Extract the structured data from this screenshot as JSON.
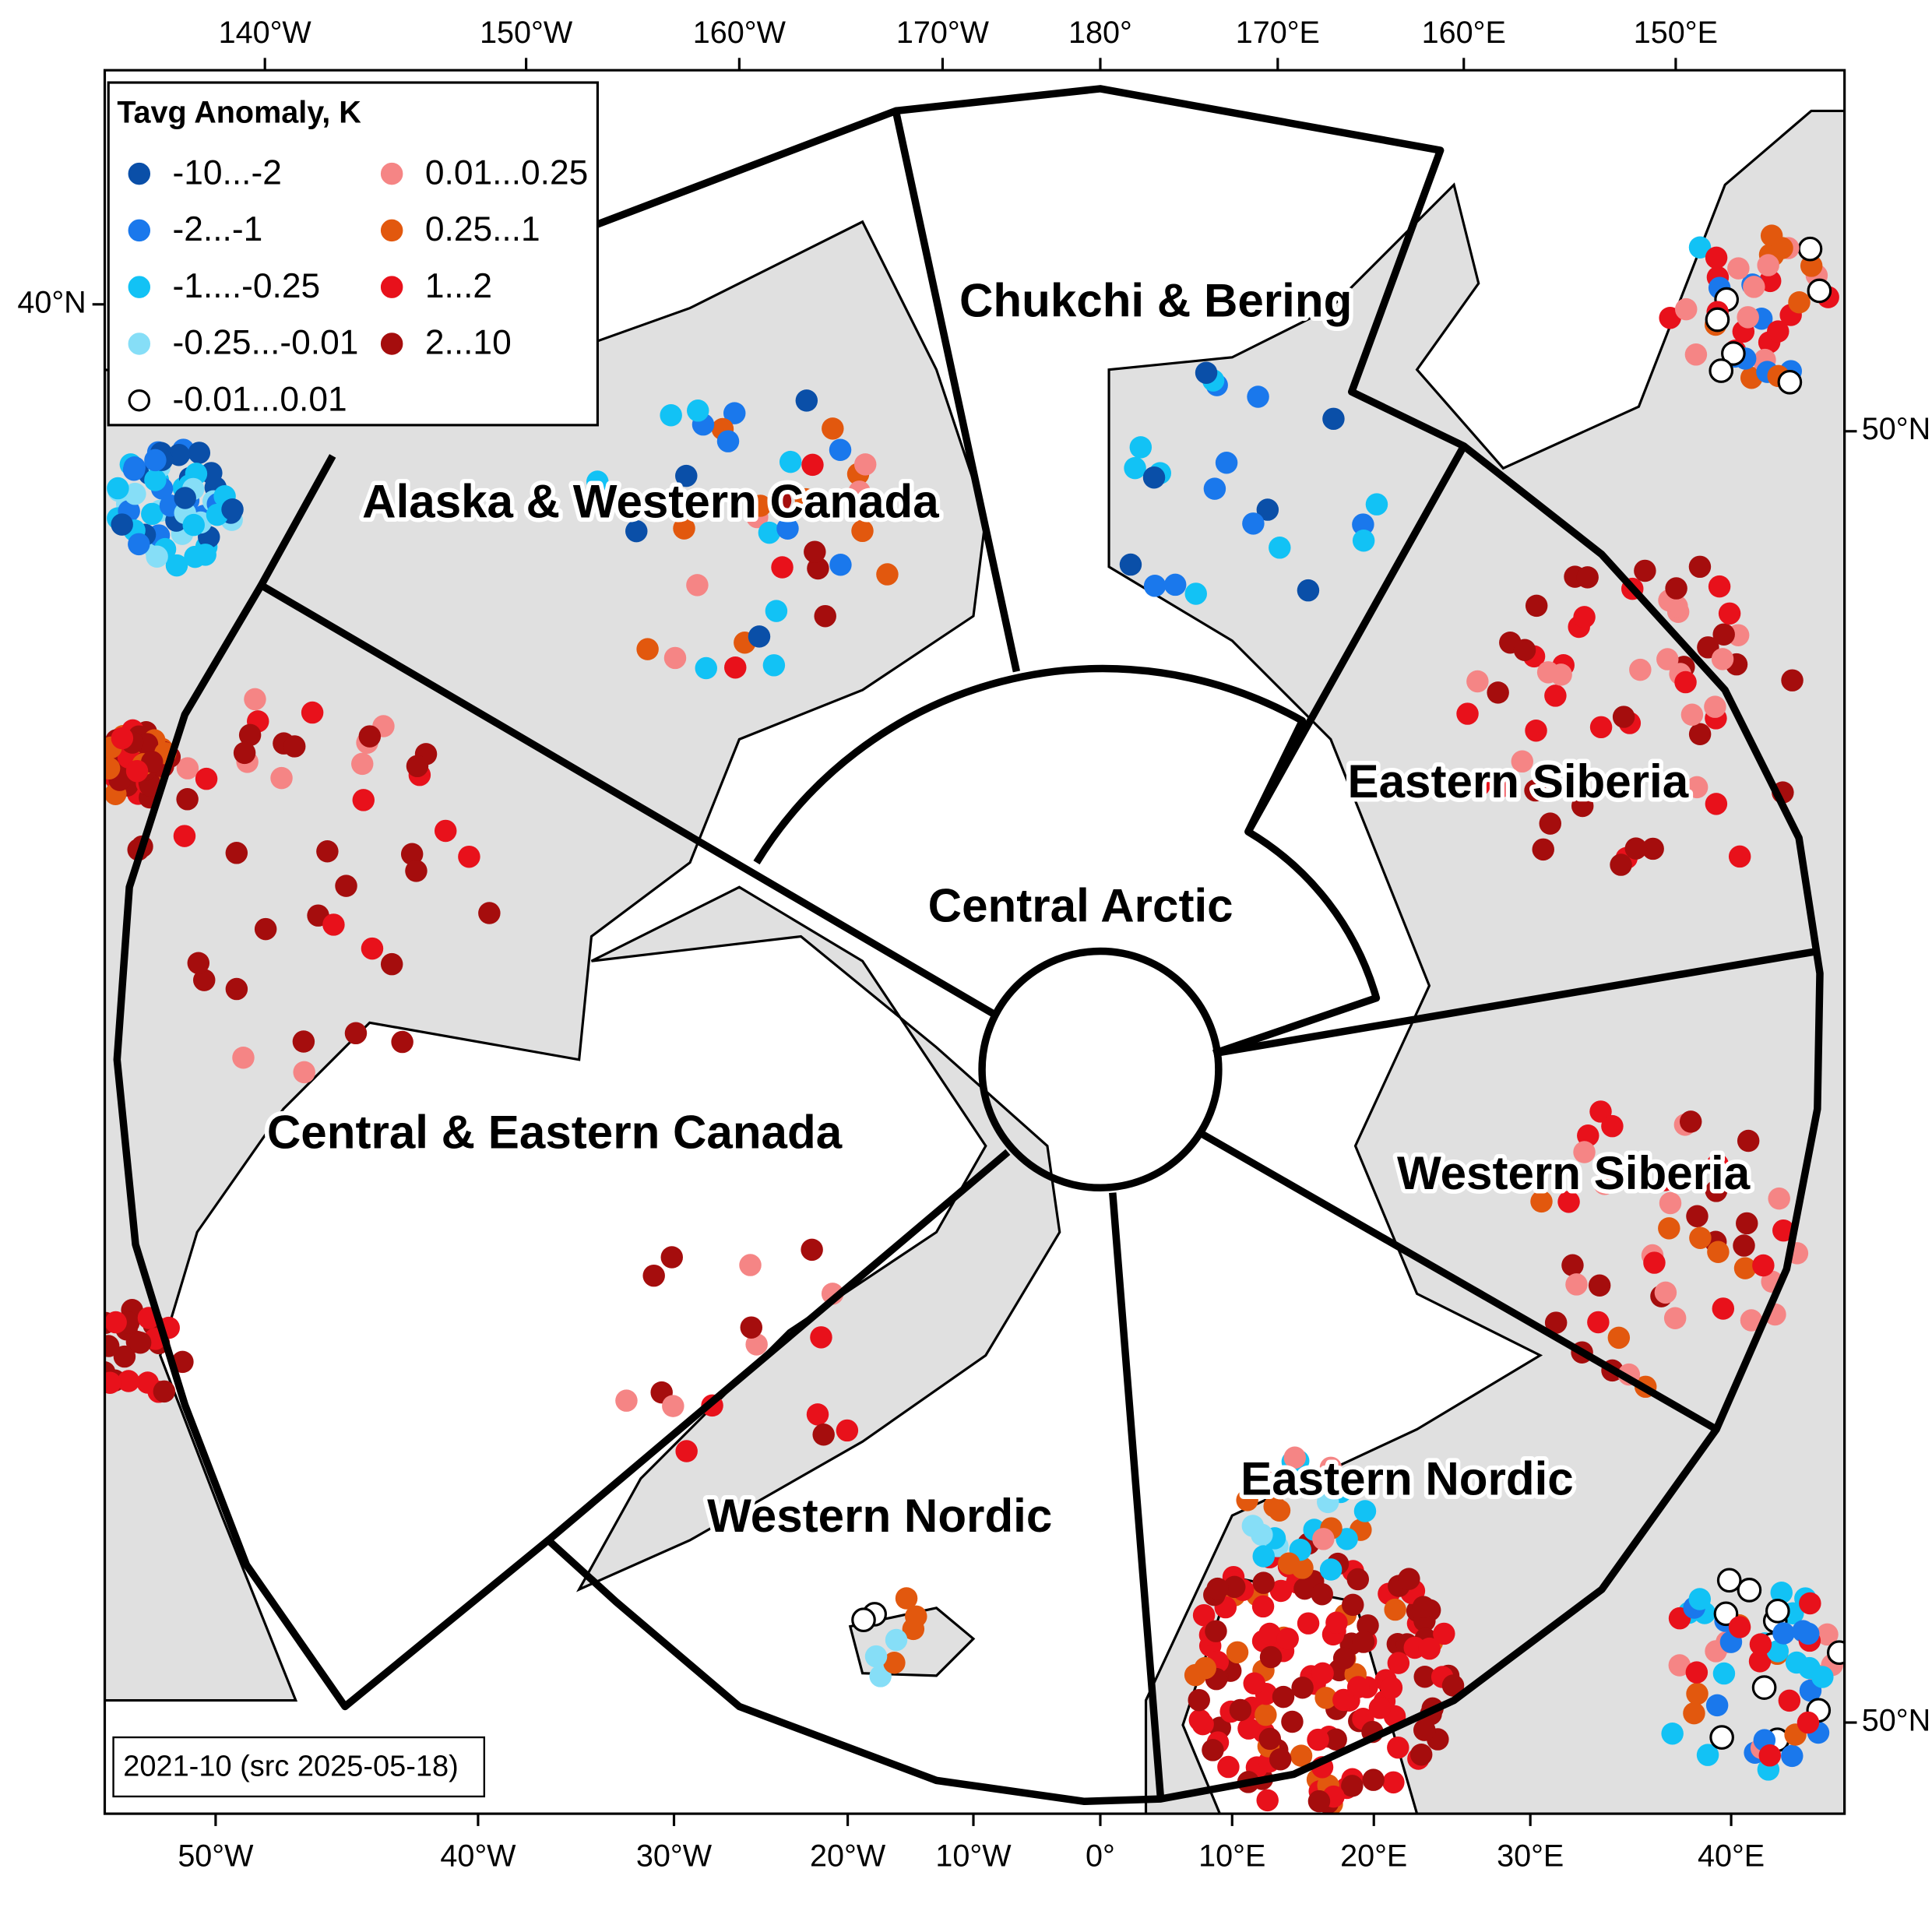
{
  "legend": {
    "title": "Tavg Anomaly, K",
    "items": [
      {
        "label": "-10...-2",
        "color": "#0a4fa8"
      },
      {
        "label": "-2...-1",
        "color": "#1a78ec"
      },
      {
        "label": "-1....-0.25",
        "color": "#12c2f5"
      },
      {
        "label": "-0.25...-0.01",
        "color": "#86def7"
      },
      {
        "label": "-0.01...0.01",
        "color": "#ffffff"
      },
      {
        "label": "0.01...0.25",
        "color": "#f58585"
      },
      {
        "label": "0.25...1",
        "color": "#e2580e"
      },
      {
        "label": "1...2",
        "color": "#e8111b"
      },
      {
        "label": "2...10",
        "color": "#a50d0d"
      }
    ]
  },
  "regions": [
    "Chukchi & Bering",
    "Alaska & Western Canada",
    "Eastern Siberia",
    "Central Arctic",
    "Central & Eastern Canada",
    "Western Siberia",
    "Eastern Nordic",
    "Western Nordic"
  ],
  "top_labels": [
    "140°W",
    "150°W",
    "160°W",
    "170°W",
    "180°",
    "170°E",
    "160°E",
    "150°E"
  ],
  "bottom_labels": [
    "50°W",
    "40°W",
    "30°W",
    "20°W",
    "10°W",
    "0°",
    "10°E",
    "20°E",
    "30°E",
    "40°E"
  ],
  "left_labels": [
    "40°N"
  ],
  "right_labels": [
    "50°N",
    "50°N"
  ],
  "date_label": "2021-10 (src 2025-05-18)"
}
